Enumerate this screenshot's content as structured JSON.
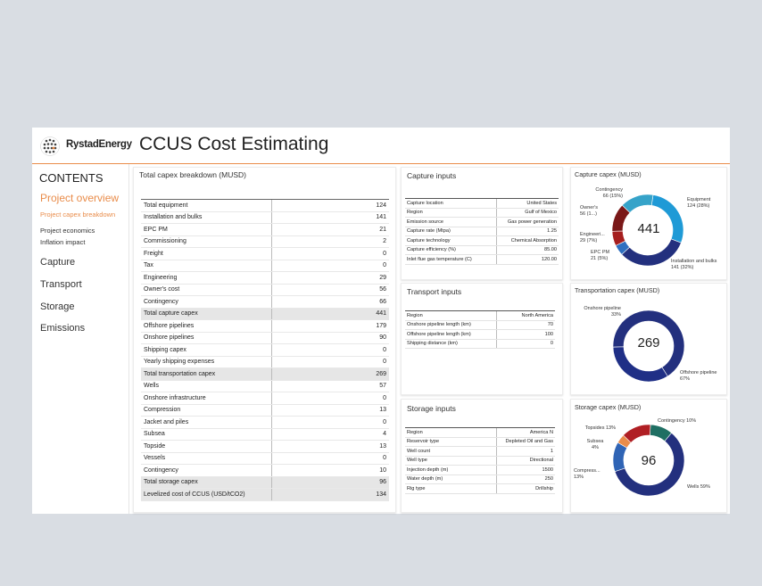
{
  "header": {
    "brand": "RystadEnergy",
    "title": "CCUS Cost Estimating"
  },
  "nav": {
    "heading": "CONTENTS",
    "items": [
      {
        "label": "Project overview"
      },
      {
        "label": "Project capex breakdown"
      },
      {
        "label": "Project economics"
      },
      {
        "label": "Inflation impact"
      },
      {
        "label": "Capture"
      },
      {
        "label": "Transport"
      },
      {
        "label": "Storage"
      },
      {
        "label": "Emissions"
      }
    ]
  },
  "capex": {
    "title": "Total capex breakdown (MUSD)",
    "rows": [
      {
        "label": "Total equipment",
        "value": "124"
      },
      {
        "label": "Installation and bulks",
        "value": "141"
      },
      {
        "label": "EPC PM",
        "value": "21"
      },
      {
        "label": "Commissioning",
        "value": "2"
      },
      {
        "label": "Freight",
        "value": "0"
      },
      {
        "label": "Tax",
        "value": "0"
      },
      {
        "label": "Engineering",
        "value": "29"
      },
      {
        "label": "Owner's cost",
        "value": "56"
      },
      {
        "label": "Contingency",
        "value": "66"
      },
      {
        "label": "Total capture capex",
        "value": "441",
        "total": true
      },
      {
        "label": "Offshore pipelines",
        "value": "179"
      },
      {
        "label": "Onshore pipelines",
        "value": "90"
      },
      {
        "label": "Shipping capex",
        "value": "0"
      },
      {
        "label": "Yearly shipping expenses",
        "value": "0"
      },
      {
        "label": "Total transportation capex",
        "value": "269",
        "total": true
      },
      {
        "label": "Wells",
        "value": "57"
      },
      {
        "label": "Onshore infrastructure",
        "value": "0"
      },
      {
        "label": "Compression",
        "value": "13"
      },
      {
        "label": "Jacket and piles",
        "value": "0"
      },
      {
        "label": "Subsea",
        "value": "4"
      },
      {
        "label": "Topside",
        "value": "13"
      },
      {
        "label": "Vessels",
        "value": "0"
      },
      {
        "label": "Contingency",
        "value": "10"
      },
      {
        "label": "Total storage capex",
        "value": "96",
        "total": true
      },
      {
        "label": "Levelized cost of CCUS (USD/tCO2)",
        "value": "134",
        "total": true
      }
    ]
  },
  "capture_inputs": {
    "title": "Capture inputs",
    "rows": [
      {
        "label": "Capture location",
        "value": "United States"
      },
      {
        "label": "Region",
        "value": "Gulf of Mexico"
      },
      {
        "label": "Emission source",
        "value": "Gas power generation"
      },
      {
        "label": "Capture rate (Mtpa)",
        "value": "1.25"
      },
      {
        "label": "Capture technology",
        "value": "Chemical Absorption"
      },
      {
        "label": "Capture efficiency (%)",
        "value": "85.00"
      },
      {
        "label": "Inlet flue gas temperature (C)",
        "value": "120.00"
      }
    ]
  },
  "transport_inputs": {
    "title": "Transport inputs",
    "rows": [
      {
        "label": "Region",
        "value": "North America"
      },
      {
        "label": "Onshore pipeline length (km)",
        "value": "70"
      },
      {
        "label": "Offshore pipeline length (km)",
        "value": "100"
      },
      {
        "label": "Shipping distance (km)",
        "value": "0"
      }
    ]
  },
  "storage_inputs": {
    "title": "Storage inputs",
    "rows": [
      {
        "label": "Region",
        "value": "America N"
      },
      {
        "label": "Reservoir type",
        "value": "Depleted Oil and Gas"
      },
      {
        "label": "Well count",
        "value": "1"
      },
      {
        "label": "Well type",
        "value": "Directional"
      },
      {
        "label": "Injection depth (m)",
        "value": "1500"
      },
      {
        "label": "Water depth (m)",
        "value": "250"
      },
      {
        "label": "Rig type",
        "value": "Drillship"
      }
    ]
  },
  "chart_data": [
    {
      "type": "pie",
      "title": "Capture capex (MUSD)",
      "total": "441",
      "slices": [
        {
          "label": "Equipment",
          "value": 124,
          "pct": "28%",
          "color": "#1f9ad6"
        },
        {
          "label": "Installation and bulks",
          "value": 141,
          "pct": "32%",
          "color": "#23307e"
        },
        {
          "label": "EPC PM",
          "value": 21,
          "pct": "5%",
          "color": "#2e6fc0"
        },
        {
          "label": "Engineering",
          "value": 29,
          "pct": "7%",
          "color": "#a61f1f"
        },
        {
          "label": "Owner's",
          "value": 56,
          "pct": "",
          "color": "#7a1818"
        },
        {
          "label": "Contingency",
          "value": 66,
          "pct": "15%",
          "color": "#36a3c9"
        }
      ],
      "labels": {
        "equipment": "Equipment",
        "equipment_val": "124 (28%)",
        "install": "Installation and bulks",
        "install_val": "141 (32%)",
        "epc": "EPC PM",
        "epc_val": "21 (5%)",
        "eng": "Engineeri...",
        "eng_val": "29 (7%)",
        "own": "Owner's",
        "own_val": "56 (1...)",
        "cont": "Contingency",
        "cont_val": "66 (15%)"
      }
    },
    {
      "type": "pie",
      "title": "Transportation capex (MUSD)",
      "total": "269",
      "slices": [
        {
          "label": "Offshore pipeline",
          "value": 179,
          "pct": "67%",
          "color": "#23307e"
        },
        {
          "label": "Onshore pipeline",
          "value": 90,
          "pct": "33%",
          "color": "#1f2f86"
        }
      ],
      "labels": {
        "on": "Onshore pipeline",
        "on_val": "33%",
        "off": "Offshore pipeline",
        "off_val": "67%"
      }
    },
    {
      "type": "pie",
      "title": "Storage capex (MUSD)",
      "total": "96",
      "slices": [
        {
          "label": "Contingency",
          "value": 10,
          "pct": "10%",
          "color": "#1f6f63"
        },
        {
          "label": "Wells",
          "value": 57,
          "pct": "59%",
          "color": "#23307e"
        },
        {
          "label": "Compress...",
          "value": 13,
          "pct": "13%",
          "color": "#2f64b5"
        },
        {
          "label": "Subsea",
          "value": 4,
          "pct": "4%",
          "color": "#e98c4a"
        },
        {
          "label": "Topsides",
          "value": 13,
          "pct": "13%",
          "color": "#b01f24"
        }
      ],
      "labels": {
        "cont": "Contingency 10%",
        "wells": "Wells 59%",
        "comp": "Compress...",
        "comp_val": "13%",
        "sub": "Subsea",
        "sub_val": "4%",
        "top": "Topsides 13%"
      }
    }
  ]
}
